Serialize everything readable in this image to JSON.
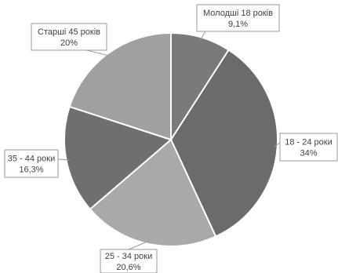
{
  "chart_data": {
    "type": "pie",
    "title": "",
    "slices": [
      {
        "label": "Молодші 18 років",
        "value": 9.1,
        "value_label": "9,1%",
        "color": "#7a7a7a"
      },
      {
        "label": "18 - 24 роки",
        "value": 34,
        "value_label": "34%",
        "color": "#6b6b6b"
      },
      {
        "label": "25 - 34 роки",
        "value": 20.6,
        "value_label": "20,6%",
        "color": "#a9a9a9"
      },
      {
        "label": "35 - 44 роки",
        "value": 16.3,
        "value_label": "16,3%",
        "color": "#6f6f6f"
      },
      {
        "label": "Старші 45 років",
        "value": 20,
        "value_label": "20%",
        "color": "#a0a0a0"
      }
    ],
    "legend": "none",
    "data_labels": "callouts"
  }
}
